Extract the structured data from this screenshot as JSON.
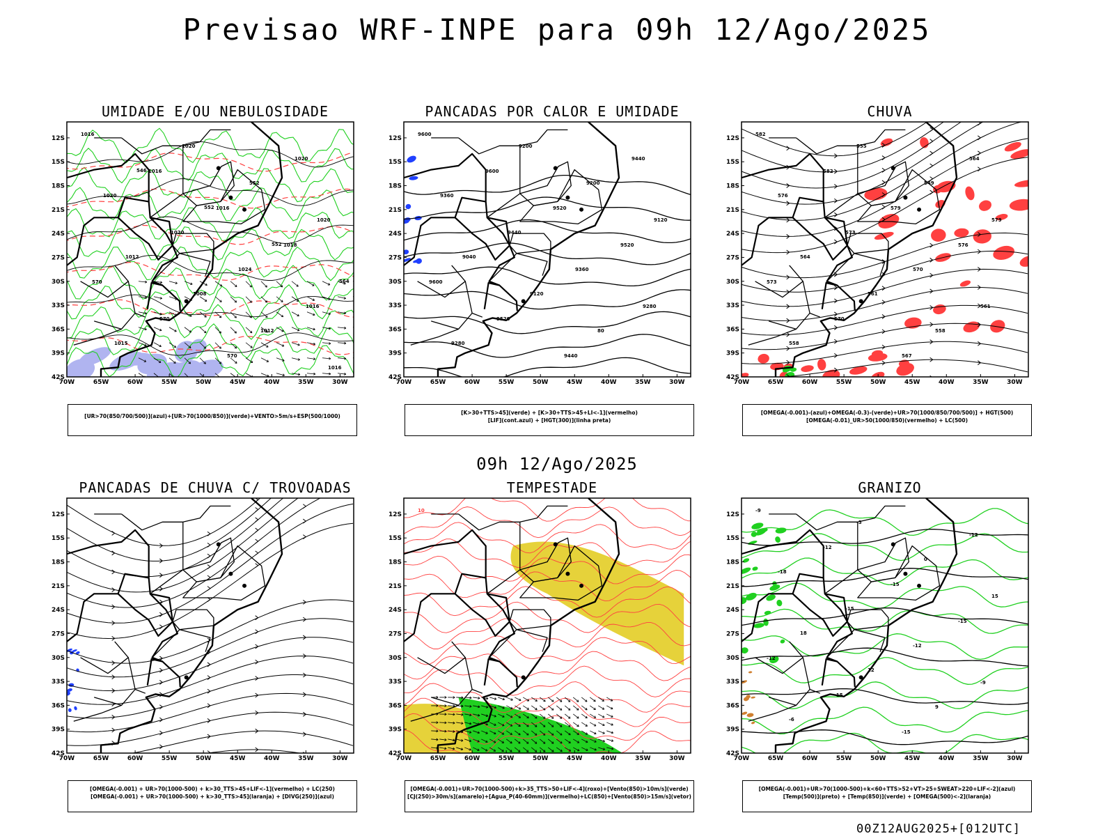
{
  "header": {
    "title": "Previsao WRF-INPE  para 09h 12/Ago/2025"
  },
  "mid_title": "09h 12/Ago/2025",
  "footer": "00Z12AUG2025+[012UTC]",
  "axes": {
    "lon_labels": [
      "70W",
      "65W",
      "60W",
      "55W",
      "50W",
      "45W",
      "40W",
      "35W",
      "30W"
    ],
    "lat_labels": [
      "12S",
      "15S",
      "18S",
      "21S",
      "24S",
      "27S",
      "30S",
      "33S",
      "36S",
      "39S",
      "42S"
    ]
  },
  "colors": {
    "red": "#ff4040",
    "green": "#20d020",
    "blue": "#2040ff",
    "lavender": "#b0b4f0",
    "yellow": "#e6d23a",
    "black": "#000000"
  },
  "panels": [
    {
      "title": "UMIDADE E/OU NEBULOSIDADE",
      "legend": [
        "[UR>70(850/700/500)](azul)+[UR>70(1000/850)](verde)+VENTO>5m/s+ESP(500/1000)"
      ],
      "contour_labels": [
        "1016",
        "1016",
        "1016",
        "1018",
        "570",
        "570",
        "570",
        "1020",
        "1020",
        "1020",
        "1024",
        "1016",
        "1015",
        "1020",
        "552",
        "1020",
        "1012",
        "1008",
        "1012",
        "1016",
        "546",
        "552",
        "552",
        "564"
      ]
    },
    {
      "title": "PANCADAS POR CALOR E UMIDADE",
      "legend": [
        "[K>30+TTS>45](verde) + [K>30+TTS>45+LI<-1](vermelho)",
        "[LIF](cont.azul) + [HGT(300)](linha preta)"
      ],
      "contour_labels": [
        "9600",
        "9600",
        "9520",
        "9520",
        "9600",
        "9520",
        "9440",
        "9440",
        "9360",
        "9440",
        "9360",
        "9280",
        "9280",
        "9200",
        "9200",
        "9120",
        "9040",
        "9120",
        "80"
      ]
    },
    {
      "title": "CHUVA",
      "legend": [
        "[OMEGA(-0.001)-(azul)+OMEGA(-0.3)-(verde)+UR>70(1000/850/700/500)] + HGT(500)",
        "[OMEGA(-0.01)_UR>50(1000/850)(vermelho) + LC(500)"
      ],
      "contour_labels": [
        "582",
        "582",
        "579",
        "576",
        "573",
        "570",
        "567",
        "564",
        "576",
        "573",
        "570",
        "561",
        "558",
        "555",
        "549",
        "579",
        "564",
        "561",
        "558"
      ]
    },
    {
      "title": "PANCADAS DE CHUVA C/ TROVOADAS",
      "legend": [
        "[OMEGA(-0.001) + UR>70(1000-500) + k>30_TTS>45+LIF<-1](vermelho) + LC(250)",
        "[OMEGA(-0.001) + UR>70(1000-500) + k>30_TTS>45](laranja) + [DIVG(250)](azul)"
      ],
      "contour_labels": []
    },
    {
      "title": "TEMPESTADE",
      "legend": [
        "[OMEGA(-0.001)+UR>70(1000-500)+k>35_TTS>50+LIF<-4](roxo)+[Vento(850)>10m/s](verde)",
        "[CJ(250)>30m/s](amarelo)+[Agua_P(40-60mm)](vermelho)+LC(850)+[Vento(850)>15m/s](vetor)"
      ],
      "contour_labels": [
        "10"
      ]
    },
    {
      "title": "GRANIZO",
      "legend": [
        "[OMEGA(-0.001)+UR>70(1000-500)+k<60+TTS>52+VT>25+SWEAT>220+LIF<-2](azul)",
        "[Temp(500)](preto) + [Temp(850)](verde) + [OMEGA(500)<-2](laranja)"
      ],
      "contour_labels": [
        "-9",
        "-12",
        "-15",
        "-15",
        "-12",
        "-15",
        "-15",
        "-12",
        "-18",
        "-15",
        "-12",
        "-9",
        "-6",
        "-3",
        "0",
        "15",
        "18",
        "12",
        "9"
      ]
    }
  ]
}
